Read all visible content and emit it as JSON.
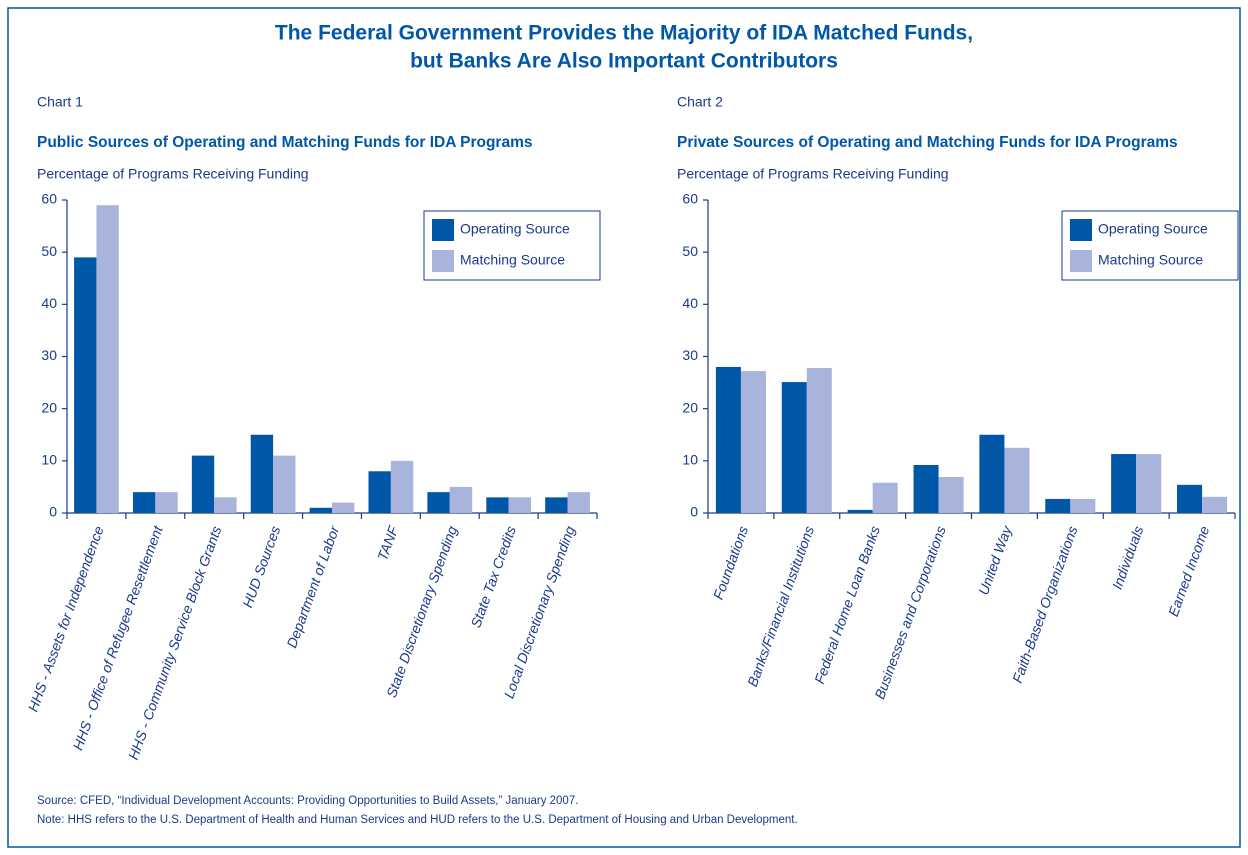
{
  "title": [
    "The Federal Government Provides the Majority of IDA Matched Funds,",
    "but Banks Are Also Important Contributors"
  ],
  "chart_data": [
    {
      "type": "bar",
      "label": "Chart 1",
      "title": "Public Sources of Operating and Matching Funds for IDA Programs",
      "ylabel": "Percentage of Programs Receiving Funding",
      "categories": [
        "HHS - Assets for Independence",
        "HHS - Office of Refugee Resettlement",
        "HHS - Community Service Block Grants",
        "HUD Sources",
        "Department of Labor",
        "TANF",
        "State Discretionary Spending",
        "State Tax Credits",
        "Local Discretionary Spending"
      ],
      "series": [
        {
          "name": "Operating Source",
          "color": "#0057a8",
          "values": [
            49,
            4,
            11,
            15,
            1,
            8,
            4,
            3,
            3
          ]
        },
        {
          "name": "Matching Source",
          "color": "#a9b4dd",
          "values": [
            59,
            4,
            3,
            11,
            2,
            10,
            5,
            3,
            4
          ]
        }
      ],
      "ylim": [
        0,
        60
      ],
      "yticks": [
        0,
        10,
        20,
        30,
        40,
        50,
        60
      ],
      "legend": "upper right"
    },
    {
      "type": "bar",
      "label": "Chart 2",
      "title": "Private Sources of Operating and Matching Funds for IDA Programs",
      "ylabel": "Percentage of Programs Receiving Funding",
      "categories": [
        "Foundations",
        "Banks/Financial Institutions",
        "Federal Home Loan Banks",
        "Businesses and Corporations",
        "United Way",
        "Faith-Based Organizations",
        "Individuals",
        "Earned Income"
      ],
      "series": [
        {
          "name": "Operating Source",
          "color": "#0057a8",
          "values": [
            28,
            25.1,
            0.6,
            9.2,
            15,
            2.7,
            11.3,
            5.4
          ]
        },
        {
          "name": "Matching Source",
          "color": "#a9b4dd",
          "values": [
            27.2,
            27.8,
            5.8,
            6.9,
            12.5,
            2.7,
            11.3,
            3.1
          ]
        }
      ],
      "ylim": [
        0,
        60
      ],
      "yticks": [
        0,
        10,
        20,
        30,
        40,
        50,
        60
      ],
      "legend": "upper right"
    }
  ],
  "source": "Source: CFED, “Individual Development Accounts: Providing Opportunities to Build Assets,” January 2007.",
  "note": "Note: HHS refers to the U.S. Department of Health and Human Services and HUD refers to the U.S. Department of Housing and Urban Development."
}
